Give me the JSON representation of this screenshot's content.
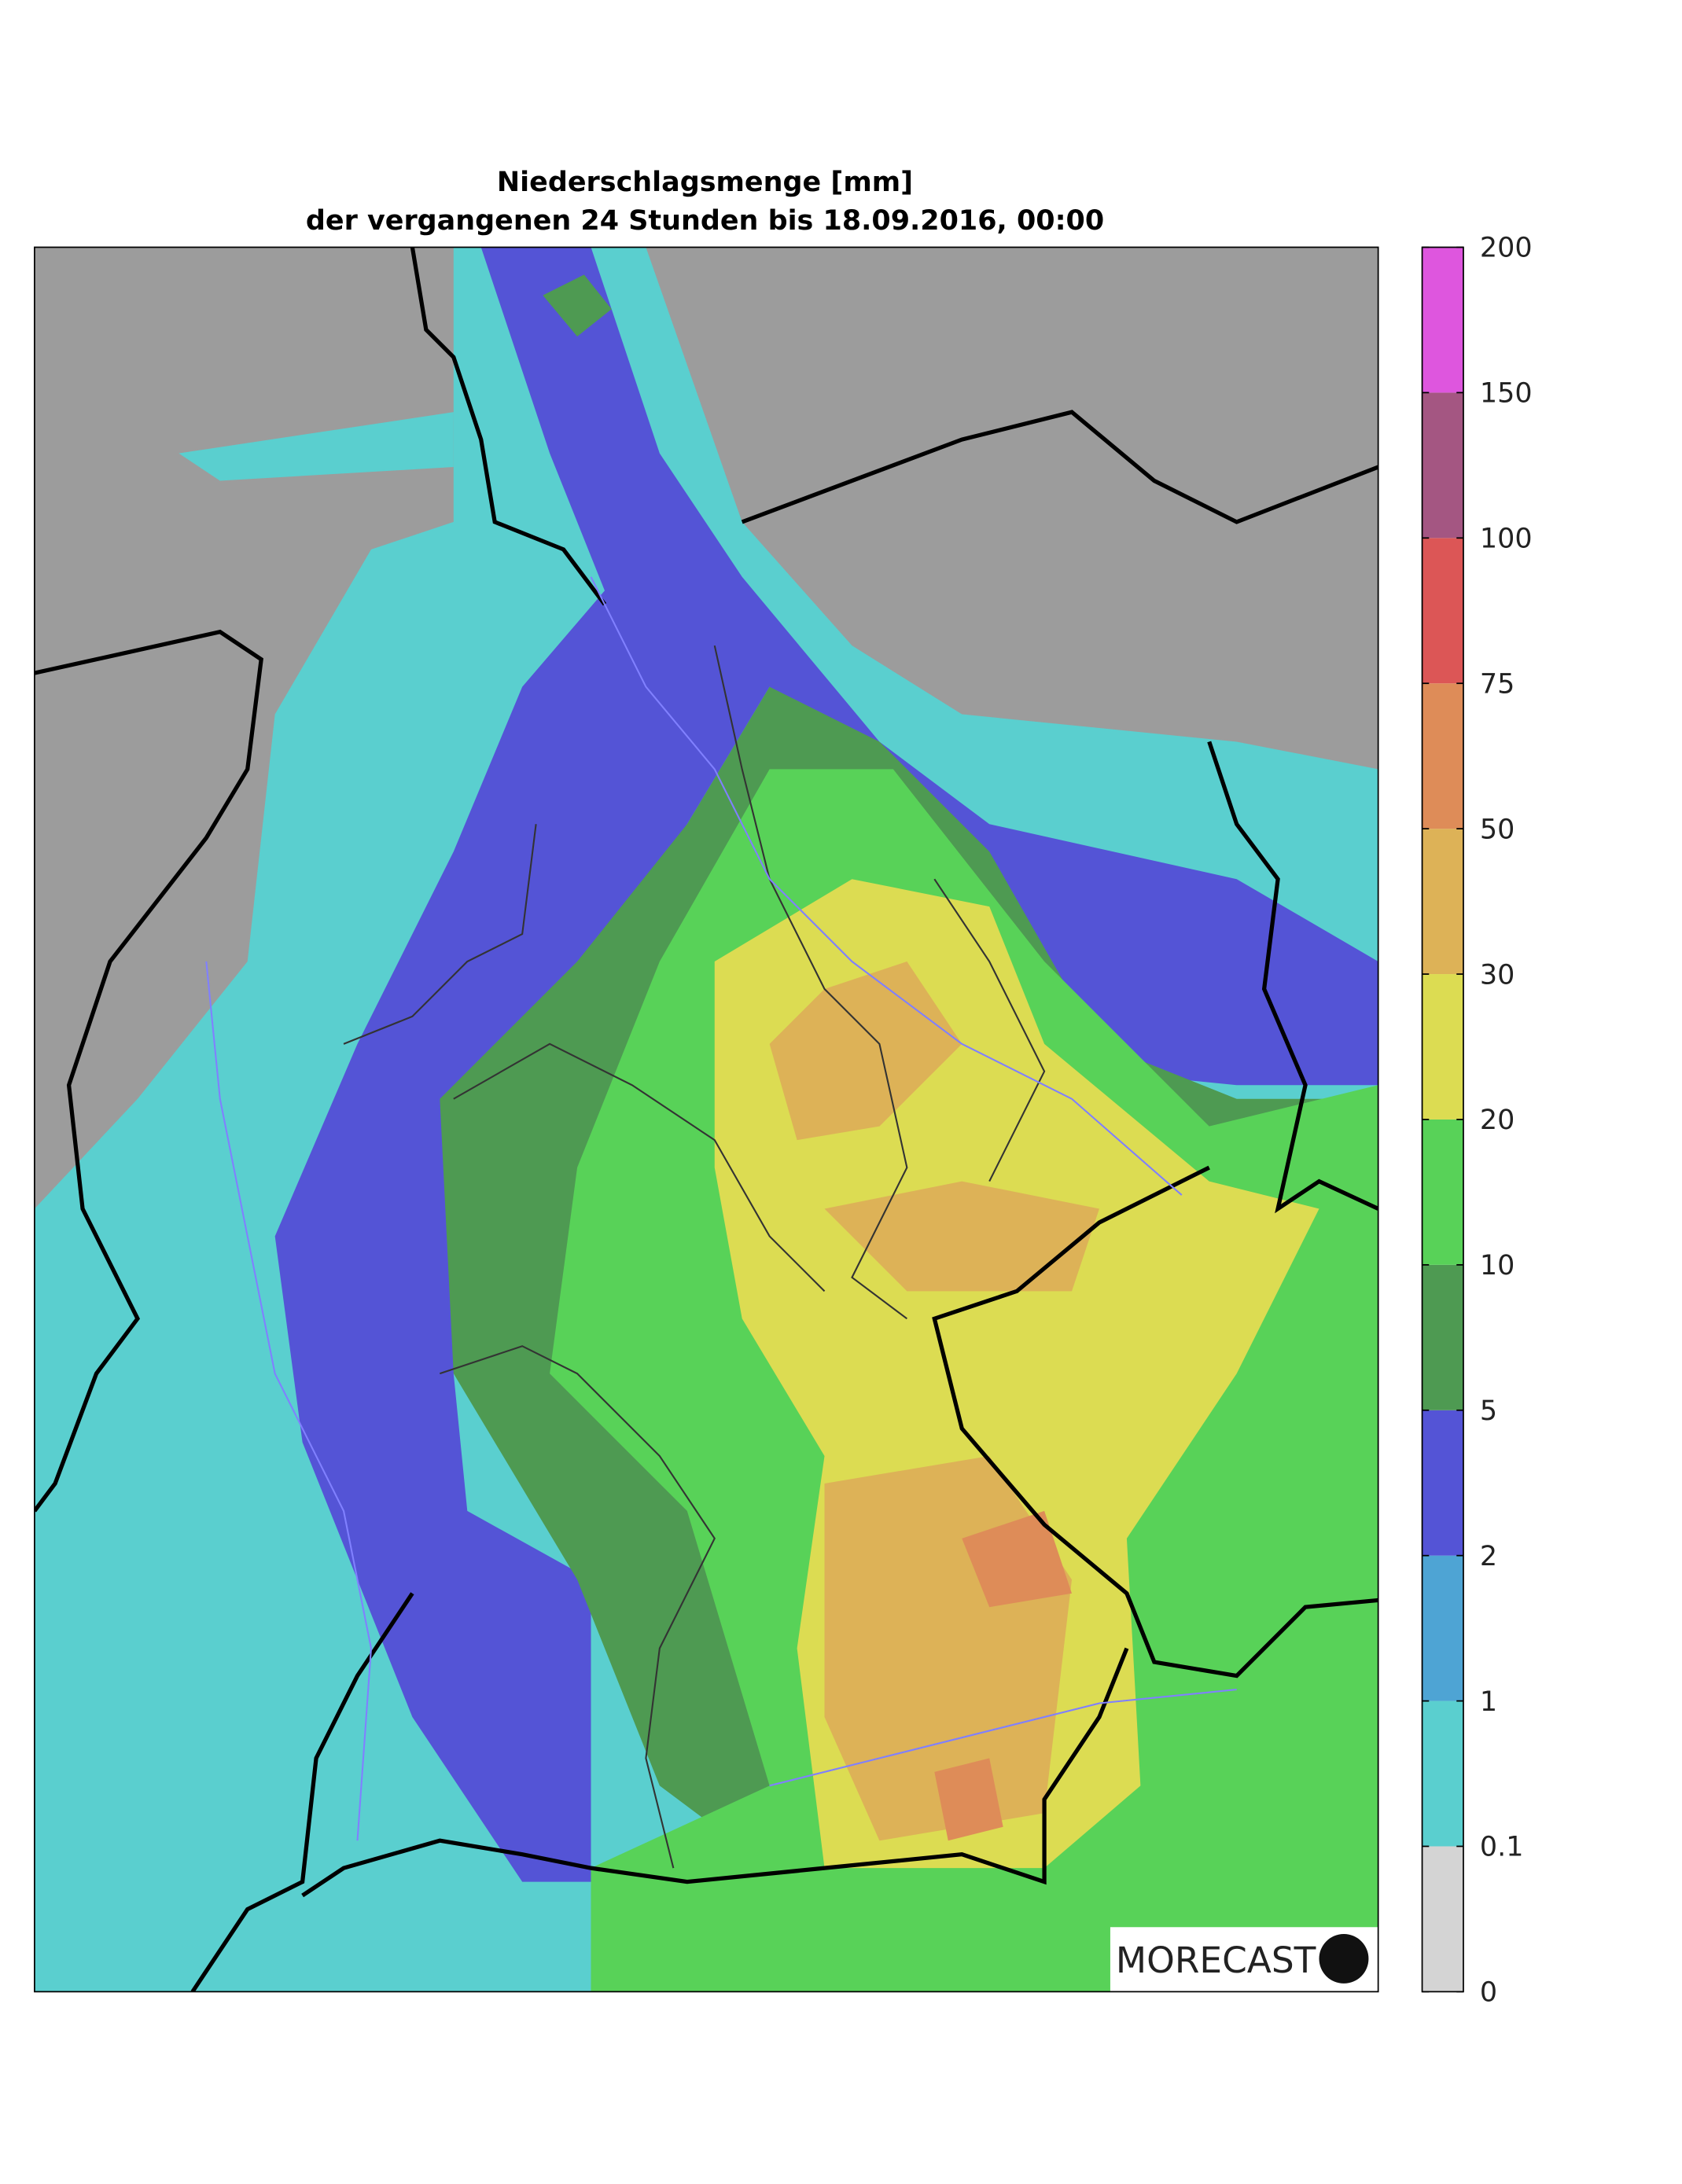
{
  "title": [
    "Niederschlagsmenge [mm]",
    "der vergangenen 24 Stunden bis 18.09.2016, 00:00"
  ],
  "colorbar": {
    "ticks": [
      0,
      0.1,
      1,
      2,
      5,
      10,
      20,
      30,
      50,
      75,
      100,
      150,
      200
    ],
    "colors": [
      "#d4d4d4",
      "#5acfcf",
      "#4ea4d4",
      "#5454d6",
      "#4e9a52",
      "#58d258",
      "#dcdc52",
      "#ddb257",
      "#de8c58",
      "#dc5656",
      "#a45682",
      "#de56de"
    ]
  },
  "logo": "MORECAST"
}
